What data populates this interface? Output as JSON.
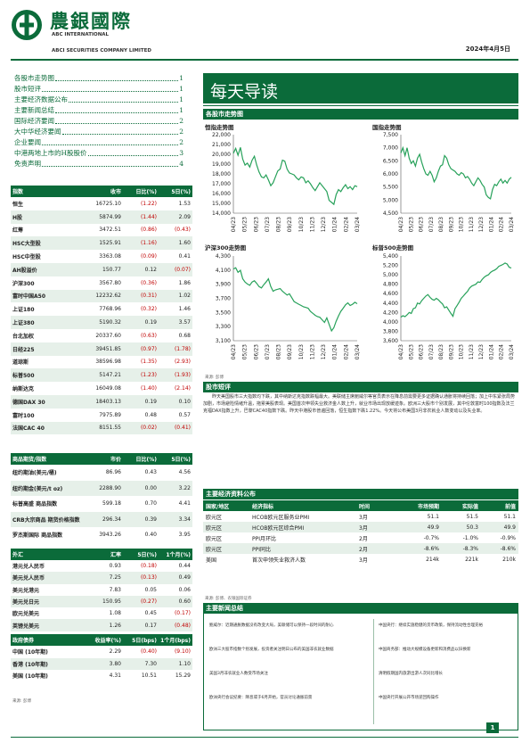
{
  "header": {
    "brand_cn": "農銀國際",
    "brand_en_1": "ABC INTERNATIONAL",
    "brand_en_2": "ABCI SECURITIES COMPANY LIMITED",
    "date": "2024年4月5日",
    "brand_color": "#0b6b3a"
  },
  "toc": [
    {
      "label": "各股市走势图",
      "page": "1"
    },
    {
      "label": "股市短评",
      "page": "1"
    },
    {
      "label": "主要经济数据公布",
      "page": "1"
    },
    {
      "label": "主要新闻总结",
      "page": "1"
    },
    {
      "label": "国际经济要闻",
      "page": "2"
    },
    {
      "label": "大中华经济要闻",
      "page": "2"
    },
    {
      "label": "企业要闻",
      "page": "2"
    },
    {
      "label": "中港两地上市的H股股价",
      "page": "3"
    },
    {
      "label": "免责声明",
      "page": "4"
    }
  ],
  "title": "每天导读",
  "index_table": {
    "headers": [
      "指数",
      "收市",
      "日比(%)",
      "5日(%)"
    ],
    "rows": [
      [
        "恒生",
        "16725.10",
        "(1.22)",
        "1.53"
      ],
      [
        "H股",
        "5874.99",
        "(1.44)",
        "2.09"
      ],
      [
        "红筹",
        "3472.51",
        "(0.86)",
        "(0.43)"
      ],
      [
        "HSC大型股",
        "1525.91",
        "(1.16)",
        "1.60"
      ],
      [
        "HSC中型股",
        "3363.08",
        "(0.09)",
        "0.41"
      ],
      [
        "AH股溢价",
        "150.77",
        "0.12",
        "(0.07)"
      ],
      [
        "沪深300",
        "3567.80",
        "(0.36)",
        "1.86"
      ],
      [
        "富时中国A50",
        "12232.62",
        "(0.31)",
        "1.02"
      ],
      [
        "上证180",
        "7768.96",
        "(0.32)",
        "1.46"
      ],
      [
        "上证380",
        "5190.32",
        "0.19",
        "3.57"
      ],
      [
        "台北加权",
        "20337.60",
        "(0.63)",
        "0.68"
      ],
      [
        "日经225",
        "39451.85",
        "(0.97)",
        "(1.78)"
      ],
      [
        "道琼斯",
        "38596.98",
        "(1.35)",
        "(2.93)"
      ],
      [
        "标普500",
        "5147.21",
        "(1.23)",
        "(1.93)"
      ],
      [
        "纳斯达克",
        "16049.08",
        "(1.40)",
        "(2.14)"
      ],
      [
        "德国DAX 30",
        "18403.13",
        "0.19",
        "0.10"
      ],
      [
        "富时100",
        "7975.89",
        "0.48",
        "0.57"
      ],
      [
        "法国CAC 40",
        "8151.55",
        "(0.02)",
        "(0.41)"
      ]
    ]
  },
  "commodity_table": {
    "headers": [
      "商品期货/指数",
      "市价",
      "日比(%)",
      "5日(%)"
    ],
    "rows": [
      [
        "纽约期油(美元/桶)",
        "86.96",
        "0.43",
        "4.56"
      ],
      [
        "纽约期金(美元/t oz)",
        "2288.90",
        "0.00",
        "3.22"
      ],
      [
        "标普高盛 商品指数",
        "599.18",
        "0.70",
        "4.41"
      ],
      [
        "CRB大宗商品 期货价格指数",
        "296.34",
        "0.39",
        "3.34"
      ],
      [
        "罗杰斯国际 商品指数",
        "3943.26",
        "0.40",
        "3.95"
      ]
    ]
  },
  "fx_table": {
    "headers": [
      "外汇",
      "汇率",
      "5日(%)",
      "1个月(%)"
    ],
    "rows": [
      [
        "港元兑人民币",
        "0.93",
        "(0.18)",
        "0.44"
      ],
      [
        "美元兑人民币",
        "7.25",
        "(0.13)",
        "0.49"
      ],
      [
        "美元兑港元",
        "7.83",
        "0.05",
        "0.06"
      ],
      [
        "美元兑日元",
        "150.95",
        "(0.27)",
        "0.60"
      ],
      [
        "欧元兑美元",
        "1.08",
        "0.45",
        "(0.17)"
      ],
      [
        "英镑兑美元",
        "1.26",
        "0.17",
        "(0.48)"
      ],
      [
        "澳元兑美元",
        "0.66",
        "1.04",
        "1.32"
      ]
    ]
  },
  "bond_table": {
    "headers": [
      "政府债券",
      "收益率(%)",
      "5日(bps)",
      "1个月(bps)"
    ],
    "rows": [
      [
        "中国 (10年期)",
        "2.29",
        "(0.40)",
        "(9.10)"
      ],
      [
        "香港 (10年期)",
        "3.80",
        "7.30",
        "1.10"
      ],
      [
        "美国 (10年期)",
        "4.31",
        "10.51",
        "15.29"
      ]
    ]
  },
  "sources": {
    "left": "来源: 彭博",
    "chart": "来源: 彭博",
    "econ": "来源: 彭博、农银国际证券"
  },
  "charts_section": "各股市走势图",
  "charts": [
    {
      "title": "恒指走势图",
      "chart_data": {
        "type": "line",
        "ylim": [
          14000,
          22000
        ],
        "yticks": [
          "22,000",
          "21,000",
          "20,000",
          "19,000",
          "18,000",
          "17,000",
          "16,000",
          "15,000",
          "14,000"
        ],
        "xticks": [
          "04/23",
          "05/23",
          "06/23",
          "07/23",
          "08/23",
          "09/23",
          "10/23",
          "11/23",
          "12/23",
          "01/24",
          "02/24",
          "03/24"
        ],
        "series": [
          {
            "values": [
              20100,
              20600,
              19900,
              20700,
              19500,
              18900,
              19100,
              18700,
              19400,
              19800,
              18900,
              18200,
              17700,
              17600,
              17900,
              17400,
              16800,
              17100,
              17700,
              18300,
              18500,
              19400,
              19300,
              18500,
              18100,
              18000,
              17900,
              17600,
              17400,
              17700,
              17600,
              17100,
              17300,
              17000,
              16600,
              16300,
              16700,
              17100,
              16800,
              16500,
              16200,
              15300,
              15100,
              14900,
              15900,
              16400,
              16200,
              16600,
              16900,
              16500,
              16700,
              16400,
              16800,
              16700
            ]
          }
        ]
      }
    },
    {
      "title": "国指走势图",
      "chart_data": {
        "type": "line",
        "ylim": [
          4500,
          7500
        ],
        "yticks": [
          "7,500",
          "7,000",
          "6,500",
          "6,000",
          "5,500",
          "5,000",
          "4,500"
        ],
        "xticks": [
          "04/23",
          "05/23",
          "06/23",
          "07/23",
          "08/23",
          "09/23",
          "10/23",
          "11/23",
          "12/23",
          "01/24",
          "02/24",
          "03/24"
        ],
        "series": [
          {
            "values": [
              6800,
              7000,
              6700,
              7000,
              6600,
              6400,
              6500,
              6300,
              6600,
              6750,
              6450,
              6200,
              6000,
              5950,
              6100,
              5950,
              5700,
              5850,
              6100,
              6300,
              6350,
              6700,
              6600,
              6350,
              6200,
              6150,
              6100,
              6000,
              5950,
              6050,
              6000,
              5850,
              5900,
              5800,
              5650,
              5550,
              5700,
              5850,
              5750,
              5600,
              5500,
              5200,
              5100,
              5050,
              5400,
              5600,
              5550,
              5700,
              5800,
              5650,
              5750,
              5650,
              5800,
              5870
            ]
          }
        ]
      }
    },
    {
      "title": "沪深300走势图",
      "chart_data": {
        "type": "line",
        "ylim": [
          3000,
          4300
        ],
        "yticks": [
          "4,300",
          "4,100",
          "3,900",
          "3,700",
          "3,500",
          "3,300",
          "3,100"
        ],
        "xticks": [
          "04/23",
          "05/23",
          "06/23",
          "07/23",
          "08/23",
          "09/23",
          "10/23",
          "11/23",
          "12/23",
          "01/24",
          "02/24",
          "03/24"
        ],
        "series": [
          {
            "values": [
              4100,
              4120,
              4050,
              4080,
              3950,
              3900,
              3870,
              3850,
              3900,
              3920,
              3880,
              3830,
              3810,
              3860,
              3900,
              3950,
              3830,
              3760,
              3780,
              3790,
              3800,
              3760,
              3730,
              3700,
              3720,
              3660,
              3600,
              3580,
              3560,
              3540,
              3520,
              3510,
              3500,
              3450,
              3420,
              3390,
              3370,
              3360,
              3320,
              3280,
              3350,
              3250,
              3150,
              3200,
              3300,
              3380,
              3450,
              3500,
              3550,
              3580,
              3540,
              3560,
              3590,
              3568
            ]
          }
        ]
      }
    },
    {
      "title": "标普500走势图",
      "chart_data": {
        "type": "line",
        "ylim": [
          3600,
          5400
        ],
        "yticks": [
          "5,400",
          "5,200",
          "5,000",
          "4,800",
          "4,600",
          "4,400",
          "4,200",
          "4,000",
          "3,800",
          "3,600"
        ],
        "xticks": [
          "04/23",
          "05/23",
          "06/23",
          "07/23",
          "08/23",
          "09/23",
          "10/23",
          "11/23",
          "12/23",
          "01/24",
          "02/24",
          "03/24"
        ],
        "series": [
          {
            "values": [
              4100,
              4130,
              4110,
              4150,
              4200,
              4180,
              4280,
              4300,
              4400,
              4380,
              4450,
              4500,
              4550,
              4580,
              4520,
              4480,
              4460,
              4500,
              4470,
              4420,
              4380,
              4300,
              4320,
              4250,
              4180,
              4120,
              4280,
              4350,
              4420,
              4500,
              4550,
              4600,
              4650,
              4720,
              4760,
              4780,
              4800,
              4850,
              4840,
              4900,
              4950,
              4980,
              5000,
              5050,
              5080,
              5100,
              5130,
              5180,
              5200,
              5220,
              5250,
              5230,
              5160,
              5147
            ]
          }
        ]
      }
    }
  ],
  "commentary_section": "股市短评",
  "commentary": "昨天美国股市三大指数均下跌，其中纳斯达克指数跌幅最大。美联储主席鲍威尔等官员表示在降息前需要更多证据确认通胀将持续回落；加上中东紧张局势加剧，市场避险情绪升温，拖累美股表现。美国首次申领失业救济金人数上升，就业市场出现放缓迹象。欧洲三大股市个别发展，其中伦敦富时100指数及法兰克福DAX指数上升，巴黎CAC40指数下跌。昨天中港股市普遍回落，恒生指数下跌1.22%。今天将公布美国3月非农就业人数变动以及失业率。",
  "econ_section": "主要经济资料公布",
  "econ_table": {
    "headers": [
      "国家/地区",
      "经济指标",
      "时间",
      "市场预期",
      "实际值",
      "前值"
    ],
    "rows": [
      [
        "欧元区",
        "HCOB欧元区服务业PMI",
        "3月",
        "51.1",
        "51.5",
        "51.1"
      ],
      [
        "欧元区",
        "HCOB欧元区综合PMI",
        "3月",
        "49.9",
        "50.3",
        "49.9"
      ],
      [
        "欧元区",
        "PPI月环比",
        "2月",
        "-0.7%",
        "-1.0%",
        "-0.9%"
      ],
      [
        "欧元区",
        "PPI同比",
        "2月",
        "-8.6%",
        "-8.3%",
        "-8.6%"
      ],
      [
        "美国",
        "首次申领失业救济人数",
        "3月",
        "214k",
        "221k",
        "210k"
      ]
    ]
  },
  "news_section": "主要新闻总结",
  "news": {
    "left": [
      "鲍威尔：近期通胀数据没有改变大局，美联储可以保持一段时间的耐心",
      "欧洲三大股市指数个别发展，投资者关注明日公布的美国非农就业数据",
      "美国3月非农就业人数受市场关注",
      "欧洲央行会议纪要：降息或于6月开始，官员讨论通胀前景"
    ],
    "right": [
      "中国央行：继续实施稳健的货币政策，保持流动性合理充裕",
      "中国商务部：推动大规模设备更新和消费品以旧换新",
      "清明假期国内旅游出游人次同比增长",
      "中国央行开展公开市场逆回购操作"
    ]
  },
  "page_number": "1"
}
